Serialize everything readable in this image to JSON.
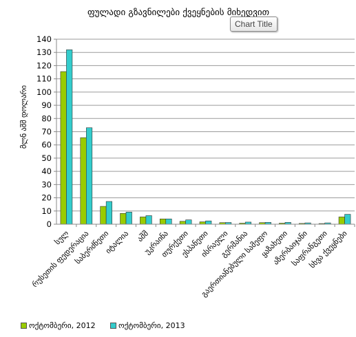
{
  "tooltip_text": "Chart Title",
  "chart_data": {
    "type": "bar",
    "title": "ფულადი გზავნილები ქვეყნების მიხედვით",
    "ylabel": "მლნ აშშ დოლარი",
    "xlabel": "",
    "ylim": [
      0,
      140
    ],
    "yticks": [
      "0",
      "10",
      "20",
      "30",
      "40",
      "50",
      "60",
      "70",
      "80",
      "90",
      "100",
      "110",
      "120",
      "130",
      "140"
    ],
    "grid": "horizontal",
    "legend_position": "bottom-left",
    "categories": [
      "სულ",
      "რუსეთის ფედერაცია",
      "საბერძნეთი",
      "იტალია",
      "აშშ",
      "უკრაინა",
      "თურქეთი",
      "ესპანეთი",
      "ისრაელი",
      "გერმანია",
      "გაერთიანებული სამეფო",
      "ყაზახეთი",
      "აზერბაიჯანი",
      "საფრანგეთი",
      "სხვა ქვეყნები"
    ],
    "series": [
      {
        "name": "ოქტომბერი, 2012",
        "color": "#99cc00",
        "values": [
          115.5,
          65.5,
          13.5,
          8.2,
          5.5,
          4.0,
          2.2,
          1.8,
          1.2,
          0.8,
          1.2,
          0.8,
          0.6,
          0.5,
          5.5
        ]
      },
      {
        "name": "ოქტომბერი, 2013",
        "color": "#33cccc",
        "values": [
          132.0,
          73.0,
          17.2,
          9.2,
          6.5,
          4.0,
          3.3,
          2.5,
          1.3,
          1.6,
          1.4,
          1.4,
          1.0,
          1.0,
          7.5
        ]
      }
    ]
  }
}
